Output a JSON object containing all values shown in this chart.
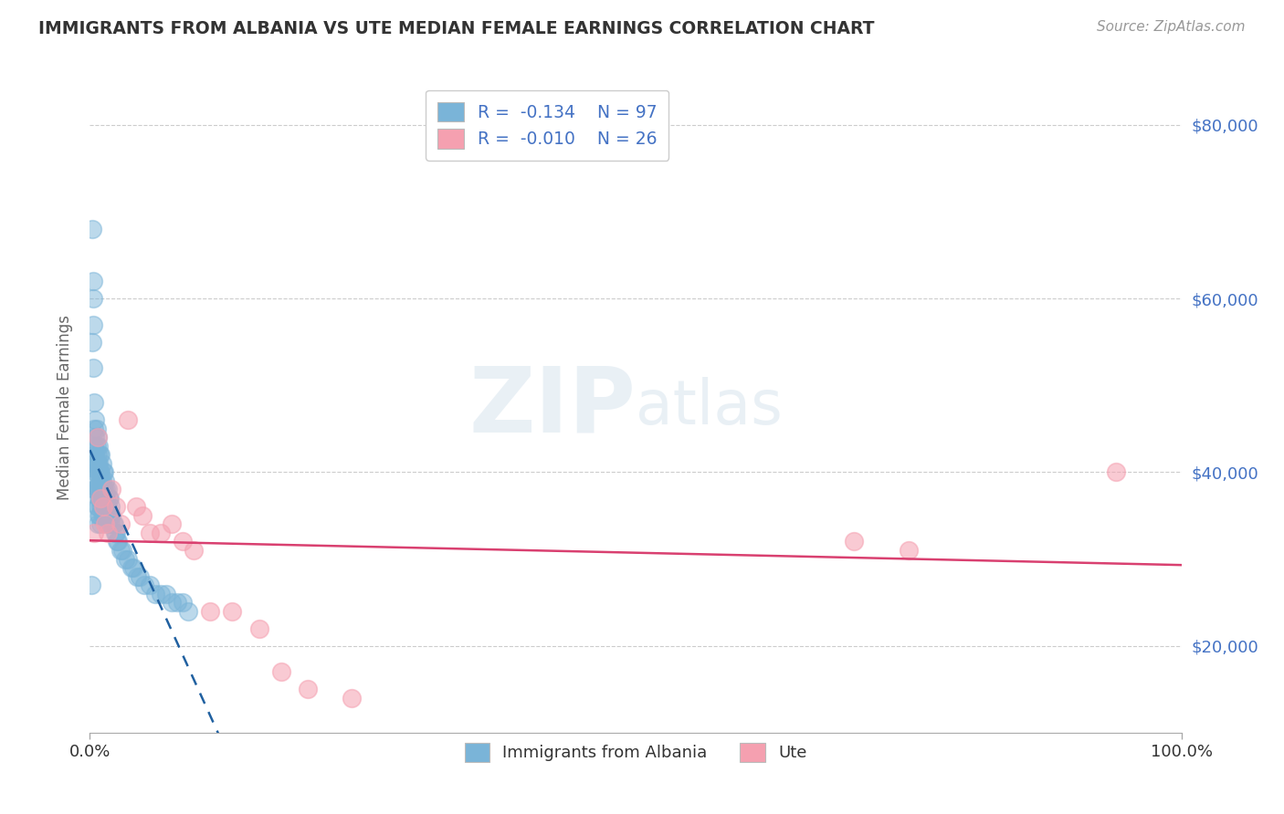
{
  "title": "IMMIGRANTS FROM ALBANIA VS UTE MEDIAN FEMALE EARNINGS CORRELATION CHART",
  "source": "Source: ZipAtlas.com",
  "ylabel": "Median Female Earnings",
  "xlim": [
    0,
    1.0
  ],
  "ylim": [
    10000,
    85000
  ],
  "xticks": [
    0.0,
    1.0
  ],
  "xticklabels": [
    "0.0%",
    "100.0%"
  ],
  "yticks": [
    20000,
    40000,
    60000,
    80000
  ],
  "yticklabels": [
    "$20,000",
    "$40,000",
    "$60,000",
    "$80,000"
  ],
  "legend_labels": [
    "Immigrants from Albania",
    "Ute"
  ],
  "legend_r_vals": [
    "-0.134",
    "-0.010"
  ],
  "legend_n_vals": [
    "97",
    "26"
  ],
  "blue_color": "#7ab4d8",
  "pink_color": "#f5a0b0",
  "blue_line_color": "#2060a0",
  "pink_line_color": "#d94070",
  "grid_color": "#cccccc",
  "title_color": "#333333",
  "axis_label_color": "#666666",
  "tick_label_color_right": "#4472c4",
  "watermark_zip": "ZIP",
  "watermark_atlas": "atlas",
  "blue_scatter_x": [
    0.001,
    0.002,
    0.002,
    0.003,
    0.003,
    0.003,
    0.003,
    0.004,
    0.004,
    0.004,
    0.004,
    0.004,
    0.005,
    0.005,
    0.005,
    0.005,
    0.005,
    0.006,
    0.006,
    0.006,
    0.006,
    0.006,
    0.006,
    0.007,
    0.007,
    0.007,
    0.007,
    0.007,
    0.007,
    0.007,
    0.008,
    0.008,
    0.008,
    0.008,
    0.008,
    0.008,
    0.009,
    0.009,
    0.009,
    0.009,
    0.009,
    0.01,
    0.01,
    0.01,
    0.01,
    0.01,
    0.01,
    0.011,
    0.011,
    0.011,
    0.011,
    0.012,
    0.012,
    0.012,
    0.012,
    0.013,
    0.013,
    0.013,
    0.014,
    0.014,
    0.014,
    0.015,
    0.015,
    0.015,
    0.016,
    0.016,
    0.016,
    0.017,
    0.017,
    0.018,
    0.018,
    0.019,
    0.019,
    0.02,
    0.021,
    0.022,
    0.023,
    0.024,
    0.025,
    0.026,
    0.028,
    0.03,
    0.032,
    0.035,
    0.038,
    0.04,
    0.043,
    0.046,
    0.05,
    0.055,
    0.06,
    0.065,
    0.07,
    0.075,
    0.08,
    0.085,
    0.09
  ],
  "blue_scatter_y": [
    27000,
    68000,
    55000,
    62000,
    60000,
    57000,
    52000,
    48000,
    45000,
    43000,
    41000,
    38000,
    46000,
    44000,
    42000,
    40000,
    38000,
    45000,
    43000,
    41000,
    39000,
    38000,
    36000,
    44000,
    42000,
    41000,
    40000,
    38000,
    36000,
    34000,
    43000,
    41000,
    40000,
    38000,
    37000,
    35000,
    42000,
    40000,
    39000,
    37000,
    35000,
    42000,
    40000,
    39000,
    37000,
    36000,
    34000,
    41000,
    39000,
    38000,
    36000,
    40000,
    38000,
    37000,
    35000,
    40000,
    38000,
    36000,
    39000,
    37000,
    35000,
    38000,
    37000,
    35000,
    38000,
    36000,
    34000,
    37000,
    35000,
    37000,
    35000,
    36000,
    34000,
    35000,
    34000,
    34000,
    33000,
    33000,
    32000,
    32000,
    31000,
    31000,
    30000,
    30000,
    29000,
    29000,
    28000,
    28000,
    27000,
    27000,
    26000,
    26000,
    26000,
    25000,
    25000,
    25000,
    24000
  ],
  "pink_scatter_x": [
    0.004,
    0.007,
    0.01,
    0.012,
    0.014,
    0.016,
    0.02,
    0.024,
    0.028,
    0.035,
    0.042,
    0.048,
    0.055,
    0.065,
    0.075,
    0.085,
    0.095,
    0.11,
    0.13,
    0.155,
    0.175,
    0.2,
    0.24,
    0.7,
    0.75,
    0.94
  ],
  "pink_scatter_y": [
    33000,
    44000,
    37000,
    36000,
    34000,
    33000,
    38000,
    36000,
    34000,
    46000,
    36000,
    35000,
    33000,
    33000,
    34000,
    32000,
    31000,
    24000,
    24000,
    22000,
    17000,
    15000,
    14000,
    32000,
    31000,
    40000
  ]
}
